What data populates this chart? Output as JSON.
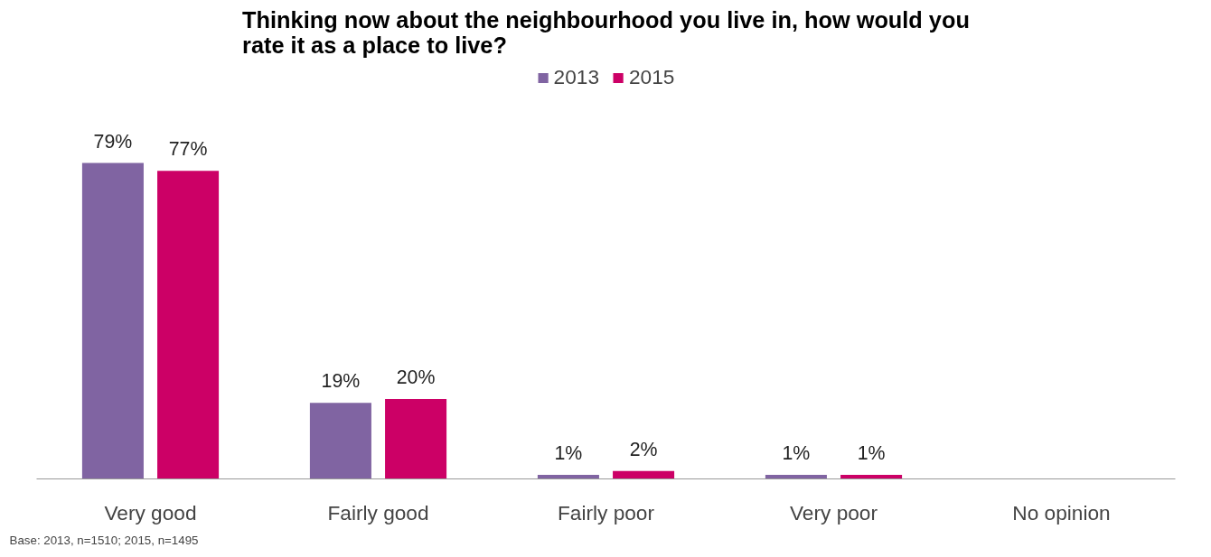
{
  "chart_data": {
    "type": "bar",
    "title": "Thinking now about the neighbourhood you live in, how would you rate it as a place to live?",
    "categories": [
      "Very good",
      "Fairly good",
      "Fairly poor",
      "Very poor",
      "No opinion"
    ],
    "series": [
      {
        "name": "2013",
        "color": "#8064a2",
        "values": [
          79,
          19,
          1,
          1,
          null
        ],
        "value_labels": [
          "79%",
          "19%",
          "1%",
          "1%",
          null
        ]
      },
      {
        "name": "2015",
        "color": "#cc0066",
        "values": [
          77,
          20,
          2,
          1,
          null
        ],
        "value_labels": [
          "77%",
          "20%",
          "2%",
          "1%",
          null
        ]
      }
    ],
    "legend": "top",
    "annotations": [
      "Base: 2013, n=1510; 2015, n=1495"
    ]
  }
}
